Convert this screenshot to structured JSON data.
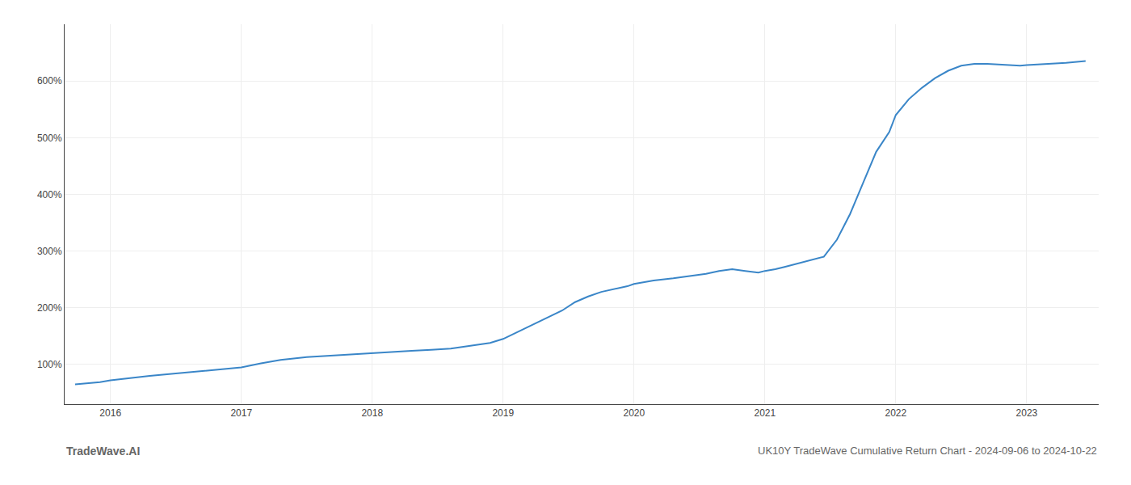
{
  "chart_data": {
    "type": "line",
    "annotations": [
      "TradeWave.AI",
      "UK10Y TradeWave Cumulative Return Chart - 2024-09-06 to 2024-10-22"
    ],
    "color": "#3a86c8",
    "grid": true,
    "x": [
      2015.73,
      2015.82,
      2015.92,
      2016.0,
      2016.15,
      2016.3,
      2016.5,
      2016.7,
      2016.85,
      2016.95,
      2017.0,
      2017.15,
      2017.3,
      2017.5,
      2017.7,
      2017.85,
      2017.95,
      2018.0,
      2018.15,
      2018.3,
      2018.45,
      2018.5,
      2018.6,
      2018.75,
      2018.9,
      2019.0,
      2019.15,
      2019.3,
      2019.45,
      2019.55,
      2019.65,
      2019.75,
      2019.85,
      2019.95,
      2020.0,
      2020.08,
      2020.15,
      2020.3,
      2020.45,
      2020.55,
      2020.65,
      2020.75,
      2020.85,
      2020.95,
      2021.0,
      2021.08,
      2021.15,
      2021.25,
      2021.35,
      2021.45,
      2021.55,
      2021.65,
      2021.75,
      2021.85,
      2021.95,
      2022.0,
      2022.1,
      2022.2,
      2022.3,
      2022.4,
      2022.5,
      2022.6,
      2022.7,
      2022.8,
      2022.9,
      2022.95,
      2023.0,
      2023.1,
      2023.2,
      2023.3,
      2023.45
    ],
    "values": [
      65,
      67,
      69,
      72,
      76,
      80,
      84,
      88,
      91,
      93,
      95,
      102,
      108,
      113,
      116,
      118,
      119,
      120,
      122,
      124,
      126,
      127,
      128,
      133,
      138,
      145,
      162,
      178,
      195,
      210,
      220,
      228,
      233,
      238,
      242,
      245,
      248,
      252,
      257,
      260,
      265,
      268,
      265,
      262,
      265,
      268,
      272,
      278,
      283,
      290,
      320,
      365,
      420,
      475,
      510,
      540,
      568,
      588,
      605,
      618,
      627,
      630,
      630,
      629,
      628,
      627,
      628,
      629,
      630,
      632,
      635
    ],
    "xlim": [
      2015.65,
      2023.55
    ],
    "xticks": [
      2016,
      2017,
      2018,
      2019,
      2020,
      2021,
      2022,
      2023
    ],
    "ylim": [
      30,
      700
    ],
    "yticks": [
      {
        "value": 100,
        "label": "100%"
      },
      {
        "value": 200,
        "label": "200%"
      },
      {
        "value": 300,
        "label": "300%"
      },
      {
        "value": 400,
        "label": "400%"
      },
      {
        "value": 500,
        "label": "500%"
      },
      {
        "value": 600,
        "label": "600%"
      }
    ]
  }
}
